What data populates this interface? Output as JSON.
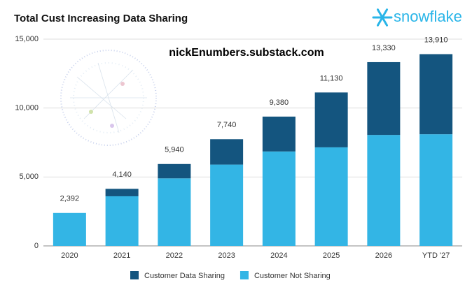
{
  "chart_data": {
    "type": "stacked_bar",
    "title": "Total Cust Increasing Data Sharing",
    "watermark": "nickEnumbers.substack.com",
    "logo": "snowflake",
    "categories": [
      "2020",
      "2021",
      "2022",
      "2023",
      "2024",
      "2025",
      "2026",
      "YTD '27"
    ],
    "series": [
      {
        "name": "Customer Data Sharing",
        "color": "#14557f",
        "values": [
          0,
          540,
          1040,
          1840,
          2530,
          3980,
          5280,
          5810
        ]
      },
      {
        "name": "Customer Not Sharing",
        "color": "#33b5e5",
        "values": [
          2392,
          3600,
          4900,
          5900,
          6850,
          7150,
          8050,
          8100
        ]
      }
    ],
    "totals": [
      2392,
      4140,
      5940,
      7740,
      9380,
      11130,
      13330,
      13910
    ],
    "total_labels": [
      "2,392",
      "4,140",
      "5,940",
      "7,740",
      "9,380",
      "11,130",
      "13,330",
      "13,910"
    ],
    "ylim": [
      0,
      15000
    ],
    "yticks": [
      0,
      {
        "value": 5000,
        "label": "5,000"
      },
      {
        "value": 10000,
        "label": "10,000"
      },
      {
        "value": 15000,
        "label": "15,000"
      }
    ],
    "grid": true,
    "legend": "bottom"
  }
}
